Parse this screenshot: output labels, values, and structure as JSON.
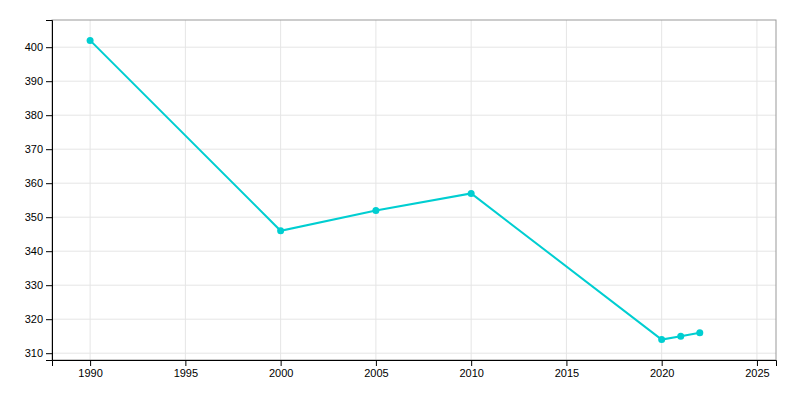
{
  "chart_data": {
    "type": "line",
    "x": [
      1990,
      2000,
      2005,
      2010,
      2020,
      2021,
      2022
    ],
    "values": [
      402,
      346,
      352,
      357,
      314,
      315,
      316
    ],
    "color": "#00CED1",
    "marker": "circle",
    "xlim": [
      1988,
      2026
    ],
    "ylim": [
      308,
      408
    ],
    "xticks": [
      1990,
      1995,
      2000,
      2005,
      2010,
      2015,
      2020,
      2025
    ],
    "yticks": [
      310,
      320,
      330,
      340,
      350,
      360,
      370,
      380,
      390,
      400
    ],
    "grid": true
  }
}
